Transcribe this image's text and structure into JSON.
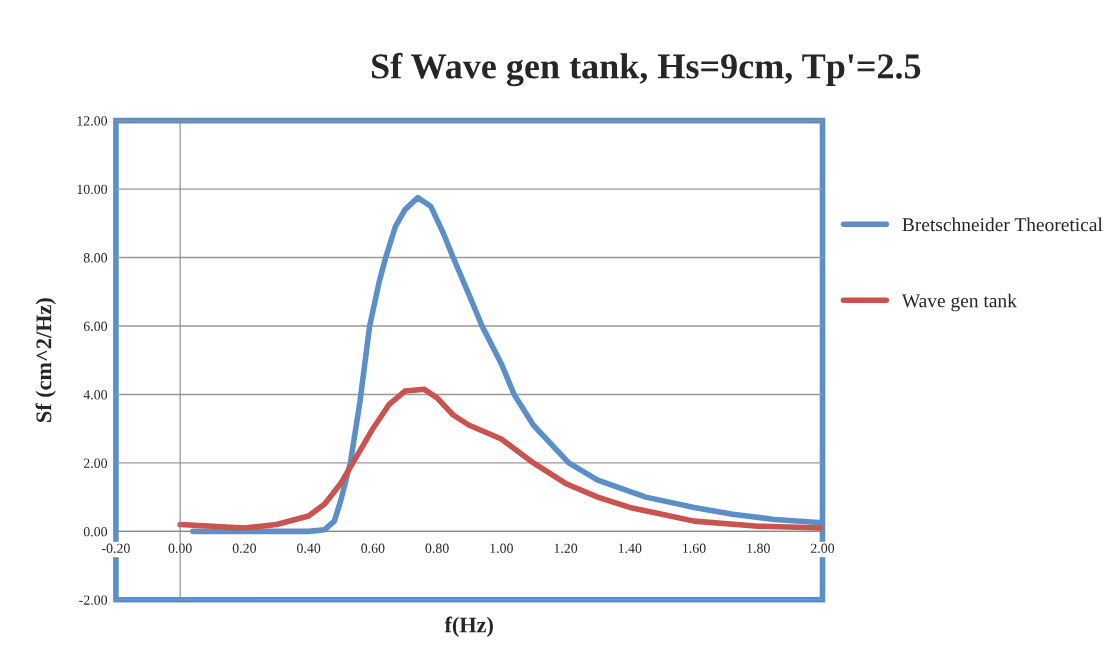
{
  "chart_data": {
    "type": "line",
    "title": "Sf Wave gen tank, Hs=9cm, Tp'=2.5",
    "xlabel": "f(Hz)",
    "ylabel": "Sf (cm^2/Hz)",
    "xlim": [
      -0.2,
      2.0
    ],
    "ylim": [
      -2,
      12
    ],
    "xticks": [
      {
        "value": -0.2,
        "label": "-0.20"
      },
      {
        "value": 0,
        "label": "0.00"
      },
      {
        "value": 0.2,
        "label": "0.20"
      },
      {
        "value": 0.4,
        "label": "0.40"
      },
      {
        "value": 0.6,
        "label": "0.60"
      },
      {
        "value": 0.8,
        "label": "0.80"
      },
      {
        "value": 1.0,
        "label": "1.00"
      },
      {
        "value": 1.2,
        "label": "1.20"
      },
      {
        "value": 1.4,
        "label": "1.40"
      },
      {
        "value": 1.6,
        "label": "1.60"
      },
      {
        "value": 1.8,
        "label": "1.80"
      },
      {
        "value": 2.0,
        "label": "2.00"
      }
    ],
    "yticks": [
      {
        "value": -2,
        "label": "-2.00"
      },
      {
        "value": 0,
        "label": "0.00"
      },
      {
        "value": 2,
        "label": "2.00"
      },
      {
        "value": 4,
        "label": "4.00"
      },
      {
        "value": 6,
        "label": "6.00"
      },
      {
        "value": 8,
        "label": "8.00"
      },
      {
        "value": 10,
        "label": "10.00"
      },
      {
        "value": 12,
        "label": "12.00"
      }
    ],
    "grid": "y",
    "legend": "right",
    "marker": "none",
    "line_style": "solid",
    "series": [
      {
        "name": "Bretschneider Theoretical",
        "color": "#5b8fc8",
        "x": [
          0.04,
          0.2,
          0.4,
          0.45,
          0.48,
          0.5,
          0.53,
          0.56,
          0.59,
          0.62,
          0.64,
          0.67,
          0.7,
          0.74,
          0.78,
          0.82,
          0.85,
          0.9,
          0.94,
          1.0,
          1.04,
          1.1,
          1.21,
          1.3,
          1.45,
          1.6,
          1.72,
          1.85,
          2.0
        ],
        "values": [
          0,
          0,
          0,
          0.05,
          0.3,
          0.9,
          2.0,
          3.8,
          6.0,
          7.3,
          8.0,
          8.9,
          9.4,
          9.75,
          9.5,
          8.7,
          8.0,
          6.9,
          6.0,
          4.9,
          4.0,
          3.1,
          2.0,
          1.5,
          1.0,
          0.7,
          0.5,
          0.35,
          0.25
        ]
      },
      {
        "name": "Wave gen tank",
        "color": "#c9534f",
        "x": [
          0.0,
          0.1,
          0.2,
          0.3,
          0.4,
          0.45,
          0.5,
          0.55,
          0.6,
          0.65,
          0.7,
          0.76,
          0.8,
          0.85,
          0.9,
          1.0,
          1.1,
          1.2,
          1.3,
          1.4,
          1.5,
          1.6,
          1.8,
          2.0
        ],
        "values": [
          0.2,
          0.15,
          0.1,
          0.2,
          0.45,
          0.8,
          1.4,
          2.2,
          3.0,
          3.7,
          4.1,
          4.15,
          3.9,
          3.4,
          3.1,
          2.7,
          2.0,
          1.4,
          1.0,
          0.7,
          0.5,
          0.3,
          0.15,
          0.1
        ]
      }
    ]
  }
}
